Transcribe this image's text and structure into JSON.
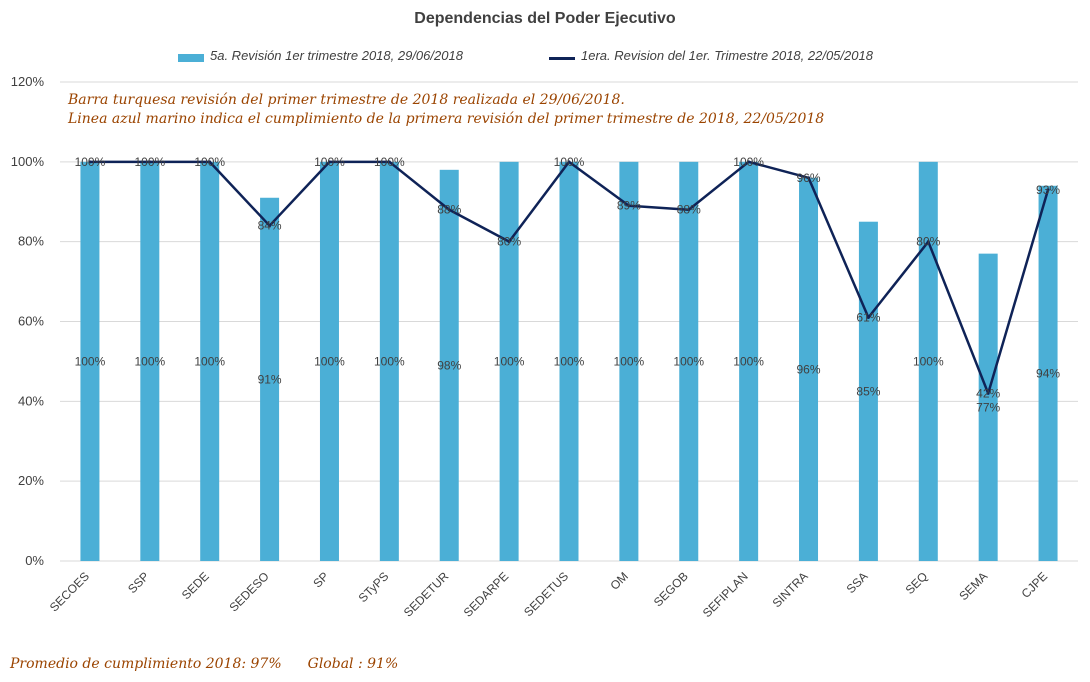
{
  "title": "Dependencias del Poder Ejecutivo",
  "notes": [
    "Barra turquesa revisión del primer trimestre de 2018 realizada el 29/06/2018.",
    "Linea azul marino indica el cumplimiento de la primera revisión del primer trimestre de 2018,  22/05/2018"
  ],
  "footer": {
    "avg": "Promedio de cumplimiento 2018: 97%",
    "global": "Global : 91%"
  },
  "colors": {
    "bar": "#4bafd6",
    "line": "#0f2357",
    "note_text": "#9b4400",
    "grid": "#d9d9d9"
  },
  "chart_data": {
    "type": "bar",
    "title": "Dependencias del Poder Ejecutivo",
    "xlabel": "",
    "ylabel": "",
    "ylim": [
      0,
      120
    ],
    "yticks": [
      "0%",
      "20%",
      "40%",
      "60%",
      "80%",
      "100%",
      "120%"
    ],
    "grid": true,
    "legend_position": "top",
    "categories": [
      "SECOES",
      "SSP",
      "SEDE",
      "SEDESO",
      "SP",
      "STyPS",
      "SEDETUR",
      "SEDARPE",
      "SEDETUS",
      "OM",
      "SEGOB",
      "SEFIPLAN",
      "SINTRA",
      "SSA",
      "SEQ",
      "SEMA",
      "CJPE"
    ],
    "series": [
      {
        "name": "5a. Revisión 1er trimestre 2018, 29/06/2018",
        "type": "bar",
        "values": [
          100,
          100,
          100,
          91,
          100,
          100,
          98,
          100,
          100,
          100,
          100,
          100,
          96,
          85,
          100,
          77,
          94
        ],
        "labels": [
          "100%",
          "100%",
          "100%",
          "91%",
          "100%",
          "100%",
          "98%",
          "100%",
          "100%",
          "100%",
          "100%",
          "100%",
          "96%",
          "85%",
          "100%",
          "77%",
          "94%"
        ]
      },
      {
        "name": "1era. Revision del 1er. Trimestre 2018, 22/05/2018",
        "type": "line",
        "values": [
          100,
          100,
          100,
          84,
          100,
          100,
          88,
          80,
          100,
          89,
          88,
          100,
          96,
          61,
          80,
          42,
          93
        ],
        "labels": [
          "100%",
          "100%",
          "100%",
          "84%",
          "100%",
          "100%",
          "88%",
          "80%",
          "100%",
          "89%",
          "88%",
          "100%",
          "96%",
          "61%",
          "80%",
          "42%",
          "93%"
        ]
      }
    ]
  }
}
